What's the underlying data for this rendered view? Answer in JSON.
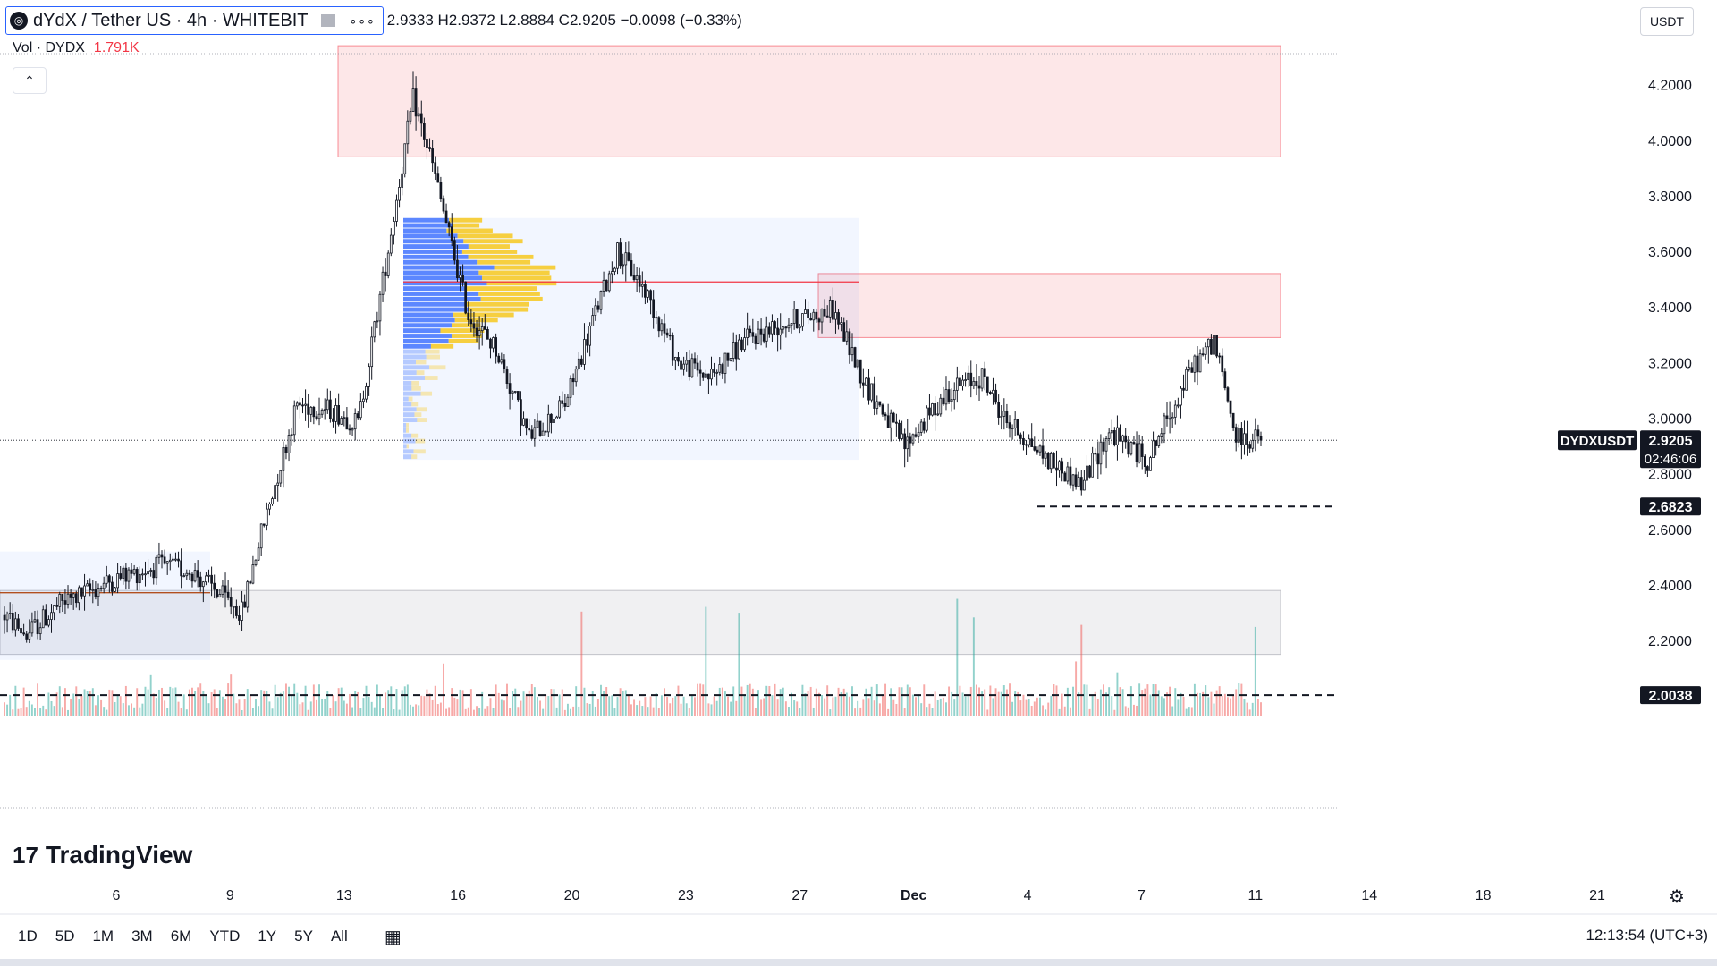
{
  "header": {
    "symbol_title": "dYdX / Tether US · 4h · WHITEBIT",
    "logo_glyph": "◎",
    "menu_glyph": "∘∘∘",
    "ohlc": "2.9333 H2.9372 L2.8884 C2.9205 −0.0098 (−0.33%)",
    "volume_label": "Vol · DYDX",
    "volume_value": "1.791K",
    "collapse_glyph": "⌃",
    "currency": "USDT"
  },
  "branding": {
    "logo_mark": "17",
    "name": "TradingView"
  },
  "timeframes": [
    "1D",
    "5D",
    "1M",
    "3M",
    "6M",
    "YTD",
    "1Y",
    "5Y",
    "All"
  ],
  "calendar_icon": "calendar-icon",
  "calendar_glyph": "▦",
  "settings_glyph": "⚙",
  "clock": "12:13:54 (UTC+3)",
  "colors": {
    "up": "#26a69a",
    "down": "#ef5350",
    "accent": "#2962ff",
    "price_label": "#131722"
  },
  "chart_data": {
    "type": "candlestick",
    "title": "dYdX / Tether US · 4h · WHITEBIT",
    "y_axis_ticks": [
      "2.2000",
      "2.4000",
      "2.6000",
      "2.8000",
      "3.0000",
      "3.2000",
      "3.4000",
      "3.6000",
      "3.8000",
      "4.0000",
      "4.2000"
    ],
    "ylim": [
      1.93,
      4.35
    ],
    "x_axis_ticks": [
      "6",
      "9",
      "13",
      "16",
      "20",
      "23",
      "27",
      "Dec",
      "4",
      "7",
      "11",
      "14",
      "18",
      "21"
    ],
    "price_anchors": [
      [
        0,
        2.29
      ],
      [
        8,
        2.22
      ],
      [
        20,
        2.33
      ],
      [
        40,
        2.42
      ],
      [
        56,
        2.47
      ],
      [
        68,
        2.45
      ],
      [
        86,
        2.3
      ],
      [
        92,
        2.55
      ],
      [
        106,
        3.05
      ],
      [
        118,
        3.03
      ],
      [
        128,
        2.98
      ],
      [
        138,
        3.55
      ],
      [
        148,
        4.15
      ],
      [
        154,
        3.95
      ],
      [
        168,
        3.37
      ],
      [
        178,
        3.25
      ],
      [
        190,
        2.93
      ],
      [
        203,
        3.05
      ],
      [
        214,
        3.38
      ],
      [
        222,
        3.6
      ],
      [
        232,
        3.46
      ],
      [
        244,
        3.2
      ],
      [
        256,
        3.15
      ],
      [
        268,
        3.28
      ],
      [
        284,
        3.35
      ],
      [
        300,
        3.39
      ],
      [
        312,
        3.12
      ],
      [
        326,
        2.9
      ],
      [
        342,
        3.1
      ],
      [
        354,
        3.15
      ],
      [
        362,
        3.0
      ],
      [
        378,
        2.85
      ],
      [
        390,
        2.76
      ],
      [
        400,
        2.95
      ],
      [
        414,
        2.85
      ],
      [
        430,
        3.18
      ],
      [
        438,
        3.28
      ],
      [
        446,
        2.93
      ],
      [
        455,
        2.92
      ]
    ],
    "candle_count": 456,
    "last_price": "2.9205",
    "last_price_label": "DYDXUSDT",
    "countdown": "02:46:06",
    "levels": [
      {
        "price": 2.6823,
        "label": "2.6823",
        "style": "dashed"
      },
      {
        "price": 2.0038,
        "label": "2.0038",
        "style": "dashed"
      }
    ],
    "zones": [
      {
        "kind": "resistance",
        "from_price": 3.94,
        "to_price": 4.34,
        "color": "#f23645"
      },
      {
        "kind": "resistance",
        "from_price": 3.29,
        "to_price": 3.52,
        "color": "#f23645"
      },
      {
        "kind": "support",
        "from_price": 2.15,
        "to_price": 2.38,
        "color": "#9598a1"
      }
    ],
    "volume_profile": {
      "poc_price": 3.49,
      "from_price": 2.85,
      "to_price": 3.72
    },
    "volume_unit": "DYDX"
  }
}
